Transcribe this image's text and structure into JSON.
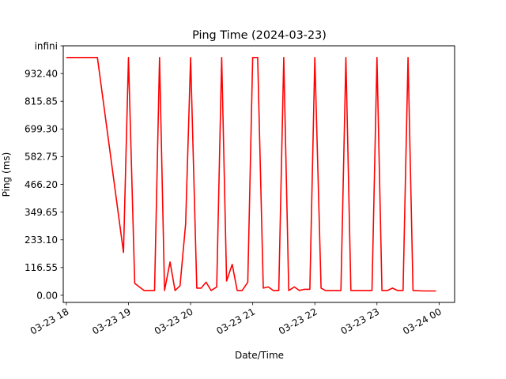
{
  "chart_data": {
    "type": "line",
    "title": "Ping Time (2024-03-23)",
    "xlabel": "Date/Time",
    "ylabel": "Ping (ms)",
    "x_ticks": [
      "03-23 18",
      "03-23 19",
      "03-23 20",
      "03-23 21",
      "03-23 22",
      "03-23 23",
      "03-24 00"
    ],
    "y_ticks": [
      "0.00",
      "116.55",
      "233.10",
      "349.65",
      "466.20",
      "582.75",
      "699.30",
      "815.85",
      "932.40",
      "infini"
    ],
    "x_unit": "hours since 03-23 00:00",
    "xlim": [
      17.95,
      24.25
    ],
    "ylim": [
      -30,
      1049
    ],
    "series_color": "#ff0000",
    "series": [
      {
        "x": [
          18.0,
          18.5,
          18.92,
          19.0,
          19.1,
          19.25,
          19.42,
          19.5,
          19.58,
          19.67,
          19.75,
          19.83,
          19.92,
          20.0,
          20.1,
          20.17,
          20.25,
          20.33,
          20.42,
          20.5,
          20.58,
          20.67,
          20.75,
          20.83,
          20.92,
          21.0,
          21.08,
          21.17,
          21.25,
          21.33,
          21.42,
          21.5,
          21.58,
          21.67,
          21.75,
          21.83,
          21.92,
          22.0,
          22.1,
          22.17,
          22.42,
          22.5,
          22.58,
          22.92,
          23.0,
          23.08,
          23.17,
          23.25,
          23.33,
          23.42,
          23.5,
          23.58,
          23.75,
          23.95
        ],
        "y": [
          1000,
          1000,
          180,
          1000,
          50,
          20,
          20,
          1000,
          20,
          140,
          20,
          40,
          300,
          1000,
          30,
          30,
          55,
          20,
          35,
          1000,
          60,
          130,
          20,
          20,
          55,
          1000,
          1000,
          30,
          35,
          20,
          20,
          1000,
          20,
          35,
          20,
          25,
          25,
          1000,
          30,
          20,
          20,
          1000,
          20,
          20,
          1000,
          20,
          20,
          30,
          20,
          20,
          1000,
          20,
          18,
          18
        ]
      }
    ]
  }
}
